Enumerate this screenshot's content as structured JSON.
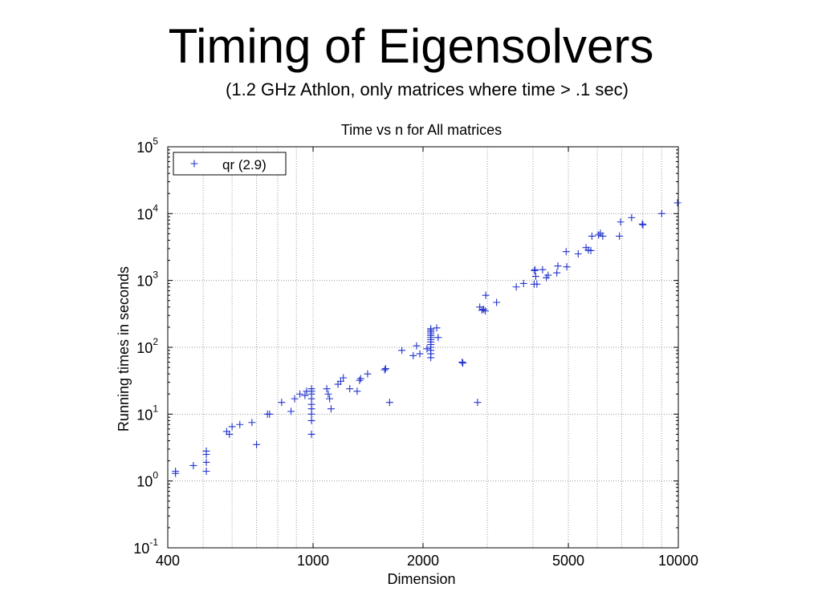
{
  "slide": {
    "title": "Timing of Eigensolvers",
    "subtitle": "(1.2 GHz Athlon, only matrices where time > .1 sec)"
  },
  "chart_data": {
    "type": "scatter",
    "title": "Time vs n for All matrices",
    "xlabel": "Dimension",
    "ylabel": "Running times in seconds",
    "x_scale": "log",
    "y_scale": "log",
    "xlim": [
      400,
      10000
    ],
    "ylim": [
      0.1,
      100000
    ],
    "x_ticks": [
      {
        "value": 400,
        "label": "400"
      },
      {
        "value": 1000,
        "label": "1000"
      },
      {
        "value": 2000,
        "label": "2000"
      },
      {
        "value": 5000,
        "label": "5000"
      },
      {
        "value": 10000,
        "label": "10000"
      }
    ],
    "y_ticks": [
      {
        "value": 0.1,
        "base": "10",
        "exp": "-1"
      },
      {
        "value": 1,
        "base": "10",
        "exp": "0"
      },
      {
        "value": 10,
        "base": "10",
        "exp": "1"
      },
      {
        "value": 100,
        "base": "10",
        "exp": "2"
      },
      {
        "value": 1000,
        "base": "10",
        "exp": "3"
      },
      {
        "value": 10000,
        "base": "10",
        "exp": "4"
      },
      {
        "value": 100000,
        "base": "10",
        "exp": "5"
      }
    ],
    "grid": true,
    "legend_position": "top-left",
    "marker_color": "#2233cc",
    "series": [
      {
        "name": "qr (2.9)",
        "marker": "+",
        "points": [
          [
            420,
            1.3
          ],
          [
            420,
            1.4
          ],
          [
            470,
            1.7
          ],
          [
            510,
            1.4
          ],
          [
            510,
            1.9
          ],
          [
            510,
            2.5
          ],
          [
            510,
            2.8
          ],
          [
            580,
            5.5
          ],
          [
            590,
            5.0
          ],
          [
            600,
            6.5
          ],
          [
            630,
            7.0
          ],
          [
            680,
            7.5
          ],
          [
            700,
            3.5
          ],
          [
            750,
            10
          ],
          [
            760,
            10
          ],
          [
            820,
            15
          ],
          [
            870,
            11
          ],
          [
            890,
            17
          ],
          [
            920,
            20
          ],
          [
            950,
            19
          ],
          [
            960,
            22
          ],
          [
            990,
            22
          ],
          [
            990,
            24
          ],
          [
            990,
            20
          ],
          [
            990,
            17
          ],
          [
            990,
            14
          ],
          [
            990,
            12
          ],
          [
            990,
            10
          ],
          [
            990,
            8
          ],
          [
            990,
            5
          ],
          [
            1090,
            24
          ],
          [
            1100,
            20
          ],
          [
            1110,
            17
          ],
          [
            1120,
            12
          ],
          [
            1170,
            28
          ],
          [
            1190,
            31
          ],
          [
            1210,
            35
          ],
          [
            1260,
            24
          ],
          [
            1320,
            22
          ],
          [
            1340,
            32
          ],
          [
            1350,
            34
          ],
          [
            1410,
            40
          ],
          [
            1570,
            46
          ],
          [
            1580,
            48
          ],
          [
            1620,
            15
          ],
          [
            1750,
            90
          ],
          [
            1880,
            75
          ],
          [
            1920,
            105
          ],
          [
            1960,
            80
          ],
          [
            2050,
            95
          ],
          [
            2100,
            190
          ],
          [
            2100,
            180
          ],
          [
            2100,
            170
          ],
          [
            2100,
            160
          ],
          [
            2100,
            150
          ],
          [
            2100,
            140
          ],
          [
            2100,
            130
          ],
          [
            2100,
            120
          ],
          [
            2100,
            110
          ],
          [
            2100,
            100
          ],
          [
            2100,
            90
          ],
          [
            2100,
            80
          ],
          [
            2100,
            70
          ],
          [
            2180,
            195
          ],
          [
            2200,
            140
          ],
          [
            2560,
            60
          ],
          [
            2570,
            58
          ],
          [
            2820,
            15
          ],
          [
            2860,
            400
          ],
          [
            2900,
            360
          ],
          [
            2930,
            370
          ],
          [
            2960,
            350
          ],
          [
            2970,
            600
          ],
          [
            3180,
            470
          ],
          [
            3600,
            800
          ],
          [
            3770,
            900
          ],
          [
            4030,
            880
          ],
          [
            4040,
            1400
          ],
          [
            4050,
            1450
          ],
          [
            4070,
            1150
          ],
          [
            4100,
            880
          ],
          [
            4250,
            1450
          ],
          [
            4350,
            1100
          ],
          [
            4400,
            1200
          ],
          [
            4650,
            1300
          ],
          [
            4680,
            1650
          ],
          [
            4930,
            2700
          ],
          [
            4950,
            1600
          ],
          [
            5320,
            2500
          ],
          [
            5590,
            3100
          ],
          [
            5670,
            2850
          ],
          [
            5760,
            2800
          ],
          [
            5800,
            4600
          ],
          [
            6050,
            4800
          ],
          [
            6120,
            5100
          ],
          [
            6210,
            4600
          ],
          [
            6900,
            4600
          ],
          [
            6950,
            7500
          ],
          [
            7450,
            8700
          ],
          [
            7970,
            7000
          ],
          [
            8000,
            6800
          ],
          [
            9010,
            10000
          ],
          [
            9950,
            14500
          ]
        ]
      }
    ]
  }
}
